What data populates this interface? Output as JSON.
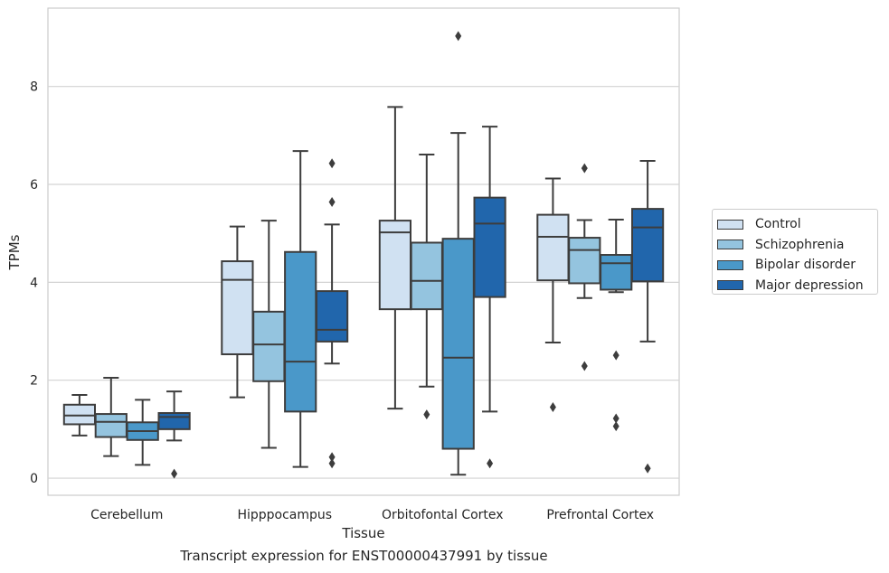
{
  "caption": "Transcript expression for ENST00000437991 by tissue",
  "chart_data": {
    "type": "boxplot",
    "xlabel": "Tissue",
    "ylabel": "TPMs",
    "ylim": [
      -0.35,
      9.6
    ],
    "yticks": [
      0,
      2,
      4,
      6,
      8
    ],
    "categories": [
      "Cerebellum",
      "Hipppocampus",
      "Orbitofontal Cortex",
      "Prefrontal Cortex"
    ],
    "grid": "horizontal",
    "legend_position": "right",
    "series": [
      {
        "name": "Control",
        "color": "#d0e1f2",
        "boxes": [
          {
            "q1": 1.1,
            "median": 1.28,
            "q3": 1.5,
            "whisker_low": 0.87,
            "whisker_high": 1.7,
            "outliers": []
          },
          {
            "q1": 2.53,
            "median": 4.05,
            "q3": 4.43,
            "whisker_low": 1.65,
            "whisker_high": 5.14,
            "outliers": []
          },
          {
            "q1": 3.45,
            "median": 5.02,
            "q3": 5.26,
            "whisker_low": 1.42,
            "whisker_high": 7.58,
            "outliers": []
          },
          {
            "q1": 4.04,
            "median": 4.93,
            "q3": 5.38,
            "whisker_low": 2.77,
            "whisker_high": 6.12,
            "outliers": [
              1.45
            ]
          }
        ]
      },
      {
        "name": "Schizophrenia",
        "color": "#94c4df",
        "boxes": [
          {
            "q1": 0.84,
            "median": 1.15,
            "q3": 1.31,
            "whisker_low": 0.45,
            "whisker_high": 2.05,
            "outliers": []
          },
          {
            "q1": 1.98,
            "median": 2.73,
            "q3": 3.4,
            "whisker_low": 0.62,
            "whisker_high": 5.26,
            "outliers": []
          },
          {
            "q1": 3.45,
            "median": 4.03,
            "q3": 4.81,
            "whisker_low": 1.87,
            "whisker_high": 6.61,
            "outliers": [
              1.3
            ]
          },
          {
            "q1": 3.98,
            "median": 4.66,
            "q3": 4.91,
            "whisker_low": 3.68,
            "whisker_high": 5.27,
            "outliers": [
              6.33,
              2.29
            ]
          }
        ]
      },
      {
        "name": "Bipolar disorder",
        "color": "#4a98c9",
        "boxes": [
          {
            "q1": 0.78,
            "median": 0.96,
            "q3": 1.14,
            "whisker_low": 0.27,
            "whisker_high": 1.6,
            "outliers": []
          },
          {
            "q1": 1.36,
            "median": 2.38,
            "q3": 4.62,
            "whisker_low": 0.23,
            "whisker_high": 6.68,
            "outliers": []
          },
          {
            "q1": 0.6,
            "median": 2.46,
            "q3": 4.89,
            "whisker_low": 0.07,
            "whisker_high": 7.05,
            "outliers": [
              9.03
            ]
          },
          {
            "q1": 3.85,
            "median": 4.39,
            "q3": 4.56,
            "whisker_low": 3.8,
            "whisker_high": 5.28,
            "outliers": [
              2.51,
              1.22,
              1.06
            ]
          }
        ]
      },
      {
        "name": "Major depression",
        "color": "#2166ac",
        "boxes": [
          {
            "q1": 1.0,
            "median": 1.25,
            "q3": 1.33,
            "whisker_low": 0.77,
            "whisker_high": 1.77,
            "outliers": [
              0.09
            ]
          },
          {
            "q1": 2.79,
            "median": 3.03,
            "q3": 3.82,
            "whisker_low": 2.34,
            "whisker_high": 5.18,
            "outliers": [
              6.43,
              5.64,
              0.43,
              0.3
            ]
          },
          {
            "q1": 3.7,
            "median": 5.2,
            "q3": 5.73,
            "whisker_low": 1.36,
            "whisker_high": 7.18,
            "outliers": [
              0.3
            ]
          },
          {
            "q1": 4.02,
            "median": 5.12,
            "q3": 5.5,
            "whisker_low": 2.79,
            "whisker_high": 6.48,
            "outliers": [
              0.2
            ]
          }
        ]
      }
    ]
  }
}
